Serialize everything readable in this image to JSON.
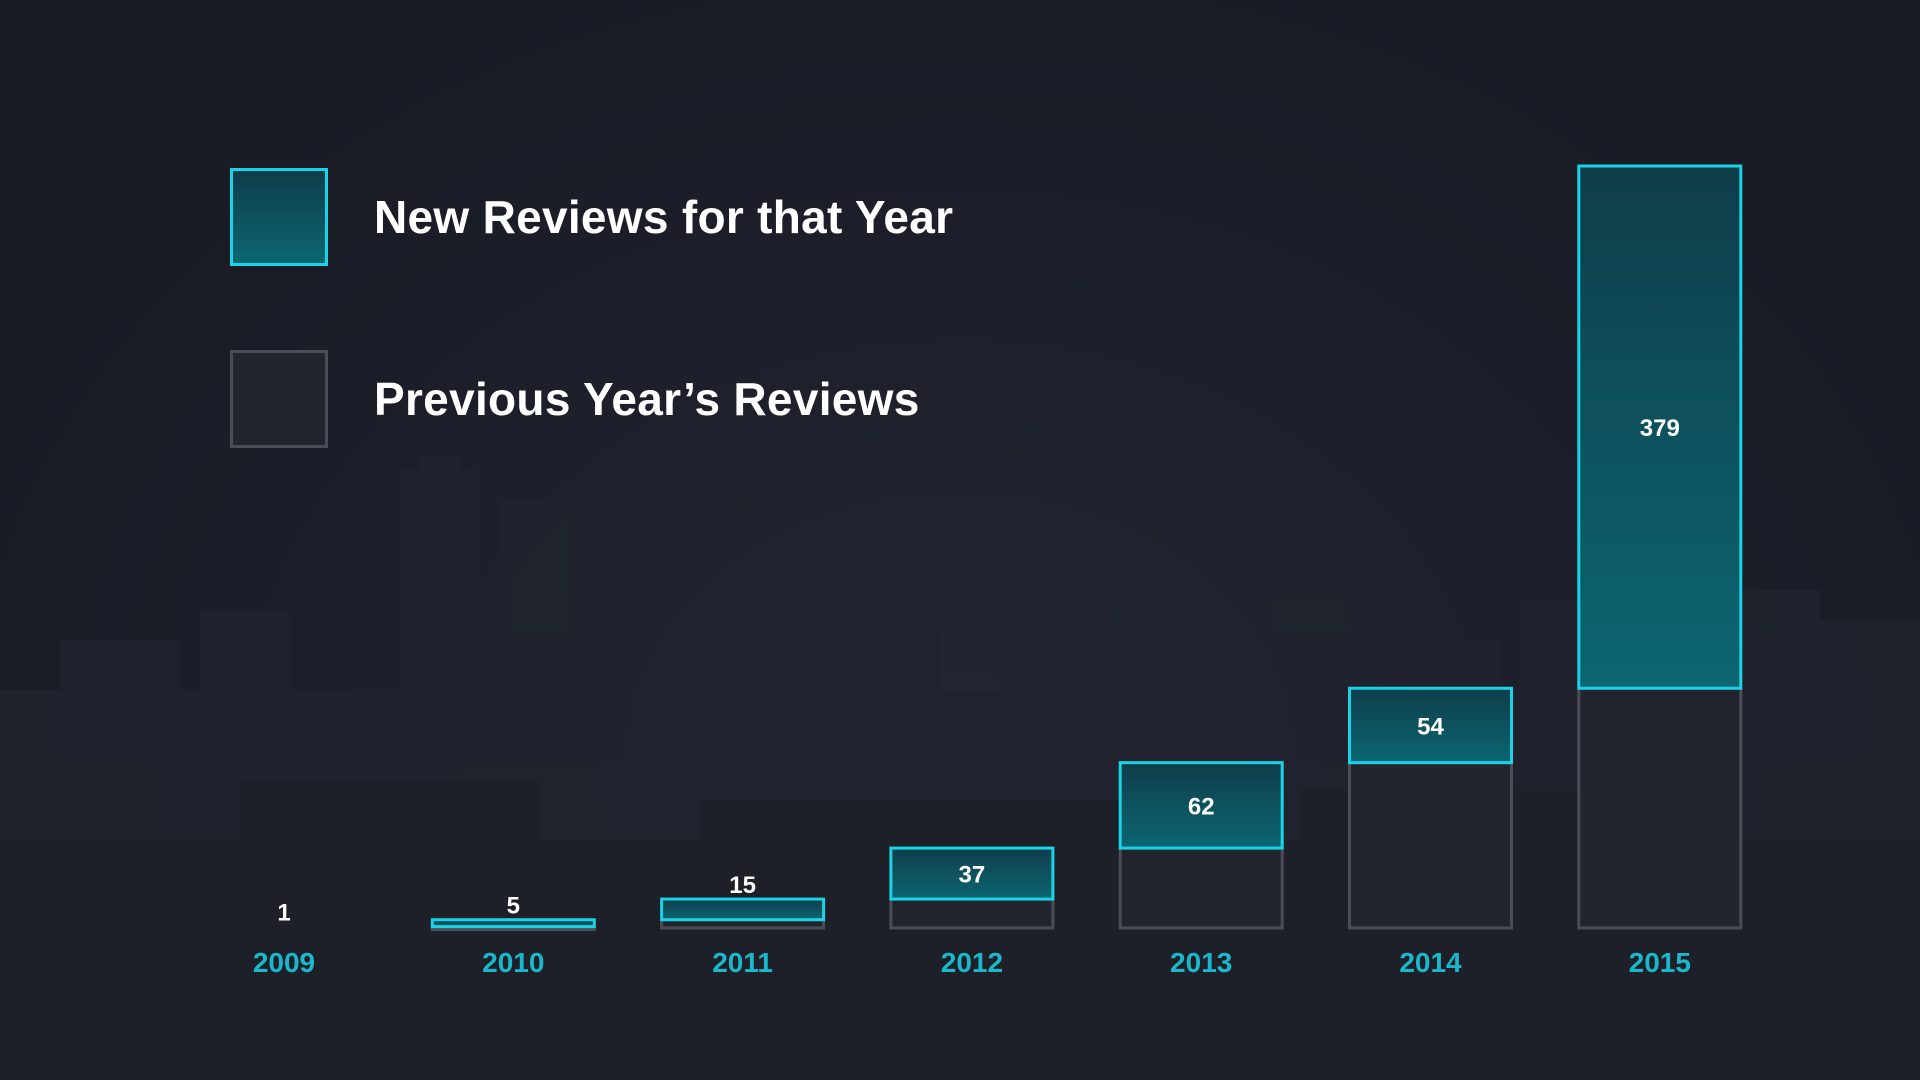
{
  "legend": {
    "new_label": "New Reviews for that Year",
    "prev_label": "Previous Year’s Reviews"
  },
  "colors": {
    "new_stroke": "#1ad3e6",
    "new_fill_top": "#0f3d4a",
    "new_fill_bottom": "#0c6672",
    "prev_stroke": "#4a4d57",
    "prev_fill": "#22252e",
    "year_label": "#1bb8cc",
    "value_label": "#ffffff"
  },
  "chart_data": {
    "type": "bar",
    "stacked": true,
    "categories": [
      "2009",
      "2010",
      "2011",
      "2012",
      "2013",
      "2014",
      "2015"
    ],
    "series": [
      {
        "name": "Previous Year’s Reviews",
        "values": [
          0,
          1,
          6,
          21,
          58,
          120,
          174
        ]
      },
      {
        "name": "New Reviews for that Year",
        "values": [
          1,
          5,
          15,
          37,
          62,
          54,
          379
        ]
      }
    ],
    "data_labels": [
      "1",
      "5",
      "15",
      "37",
      "62",
      "54",
      "379"
    ],
    "ylim": [
      0,
      553
    ],
    "grid": false,
    "legend_position": "top-left"
  }
}
